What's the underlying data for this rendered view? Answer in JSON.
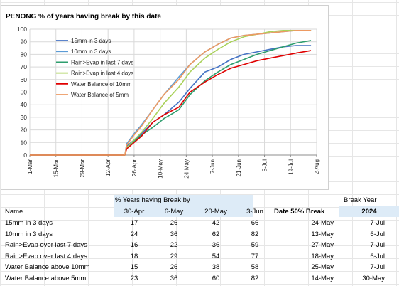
{
  "chart_data": {
    "type": "line",
    "title": "PENONG % of years having break by this date",
    "ylim": [
      0,
      100
    ],
    "yticks": [
      0,
      10,
      20,
      30,
      40,
      50,
      60,
      70,
      80,
      90,
      100
    ],
    "x_tick_labels": [
      "1-Mar",
      "15-Mar",
      "29-Mar",
      "12-Apr",
      "26-Apr",
      "10-May",
      "24-May",
      "7-Jun",
      "21-Jun",
      "5-Jul",
      "19-Jul",
      "2-Aug"
    ],
    "xlim": [
      "1-Mar",
      "2-Aug"
    ],
    "grid": true,
    "legend_position": "top-left",
    "series": [
      {
        "name": "15mm in 3 days",
        "color": "#4472c4",
        "x": [
          "1-Mar",
          "21-Apr",
          "22-Apr",
          "26-Apr",
          "30-Apr",
          "6-May",
          "12-May",
          "20-May",
          "26-May",
          "3-Jun",
          "10-Jun",
          "17-Jun",
          "24-Jun",
          "1-Jul",
          "8-Jul",
          "15-Jul",
          "22-Jul",
          "30-Jul"
        ],
        "y": [
          0,
          0,
          7,
          12,
          17,
          26,
          32,
          42,
          53,
          66,
          70,
          76,
          80,
          82,
          84,
          86,
          87,
          87
        ]
      },
      {
        "name": "10mm in 3 days",
        "color": "#5b9bd5",
        "x": [
          "1-Mar",
          "21-Apr",
          "22-Apr",
          "26-Apr",
          "30-Apr",
          "6-May",
          "12-May",
          "20-May",
          "26-May",
          "3-Jun",
          "10-Jun",
          "17-Jun",
          "24-Jun",
          "1-Jul",
          "8-Jul",
          "15-Jul",
          "22-Jul",
          "30-Jul"
        ],
        "y": [
          0,
          0,
          9,
          17,
          24,
          36,
          48,
          62,
          72,
          82,
          88,
          93,
          95,
          96,
          97,
          98,
          99,
          99
        ]
      },
      {
        "name": "Rain>Evap in last 7 days",
        "color": "#2e9e6e",
        "x": [
          "1-Mar",
          "21-Apr",
          "22-Apr",
          "26-Apr",
          "30-Apr",
          "6-May",
          "12-May",
          "20-May",
          "26-May",
          "3-Jun",
          "10-Jun",
          "17-Jun",
          "24-Jun",
          "1-Jul",
          "8-Jul",
          "15-Jul",
          "22-Jul",
          "30-Jul"
        ],
        "y": [
          0,
          0,
          6,
          11,
          16,
          22,
          29,
          36,
          48,
          59,
          66,
          72,
          76,
          80,
          83,
          86,
          89,
          91
        ]
      },
      {
        "name": "Rain>Evap in last 4 days",
        "color": "#a9d159",
        "x": [
          "1-Mar",
          "21-Apr",
          "22-Apr",
          "26-Apr",
          "30-Apr",
          "6-May",
          "12-May",
          "20-May",
          "26-May",
          "3-Jun",
          "10-Jun",
          "17-Jun",
          "24-Jun",
          "1-Jul",
          "8-Jul",
          "15-Jul",
          "22-Jul",
          "30-Jul"
        ],
        "y": [
          0,
          0,
          6,
          12,
          18,
          29,
          41,
          54,
          66,
          77,
          84,
          90,
          94,
          96,
          98,
          99,
          99,
          99
        ]
      },
      {
        "name": "Water Balance of 10mm",
        "color": "#e00000",
        "x": [
          "1-Mar",
          "21-Apr",
          "22-Apr",
          "26-Apr",
          "30-Apr",
          "6-May",
          "12-May",
          "20-May",
          "26-May",
          "3-Jun",
          "10-Jun",
          "17-Jun",
          "24-Jun",
          "1-Jul",
          "8-Jul",
          "15-Jul",
          "22-Jul",
          "30-Jul"
        ],
        "y": [
          0,
          0,
          5,
          10,
          15,
          26,
          32,
          38,
          50,
          58,
          64,
          69,
          72,
          75,
          77,
          79,
          81,
          83
        ]
      },
      {
        "name": "Water Balance of 5mm",
        "color": "#ed9a62",
        "x": [
          "1-Mar",
          "21-Apr",
          "22-Apr",
          "26-Apr",
          "30-Apr",
          "6-May",
          "12-May",
          "20-May",
          "26-May",
          "3-Jun",
          "10-Jun",
          "17-Jun",
          "24-Jun",
          "1-Jul",
          "8-Jul",
          "15-Jul",
          "22-Jul",
          "30-Jul"
        ],
        "y": [
          0,
          0,
          8,
          16,
          23,
          36,
          48,
          60,
          72,
          82,
          88,
          93,
          95,
          96,
          97,
          98,
          99,
          99
        ]
      }
    ]
  },
  "table": {
    "super_header": "% Years having Break by",
    "break_year_header": "Break Year",
    "col_name": "Name",
    "dates": [
      "30-Apr",
      "6-May",
      "20-May",
      "3-Jun"
    ],
    "col_date50": "Date 50% Break",
    "col_year": "2024",
    "rows": [
      {
        "name": "15mm in 3 days",
        "v": [
          "17",
          "26",
          "42",
          "66"
        ],
        "d50": "24-May",
        "by": "7-Jul"
      },
      {
        "name": "10mm in 3 days",
        "v": [
          "24",
          "36",
          "62",
          "82"
        ],
        "d50": "13-May",
        "by": "6-Jul"
      },
      {
        "name": "Rain>Evap over last 7 days",
        "v": [
          "16",
          "22",
          "36",
          "59"
        ],
        "d50": "27-May",
        "by": "7-Jul"
      },
      {
        "name": "Rain>Evap over last 4 days",
        "v": [
          "18",
          "29",
          "54",
          "77"
        ],
        "d50": "18-May",
        "by": "6-Jul"
      },
      {
        "name": "Water Balance above 10mm",
        "v": [
          "15",
          "26",
          "38",
          "58"
        ],
        "d50": "25-May",
        "by": "7-Jul"
      },
      {
        "name": "Water Balance above 5mm",
        "v": [
          "23",
          "36",
          "60",
          "82"
        ],
        "d50": "14-May",
        "by": "30-May"
      }
    ]
  }
}
